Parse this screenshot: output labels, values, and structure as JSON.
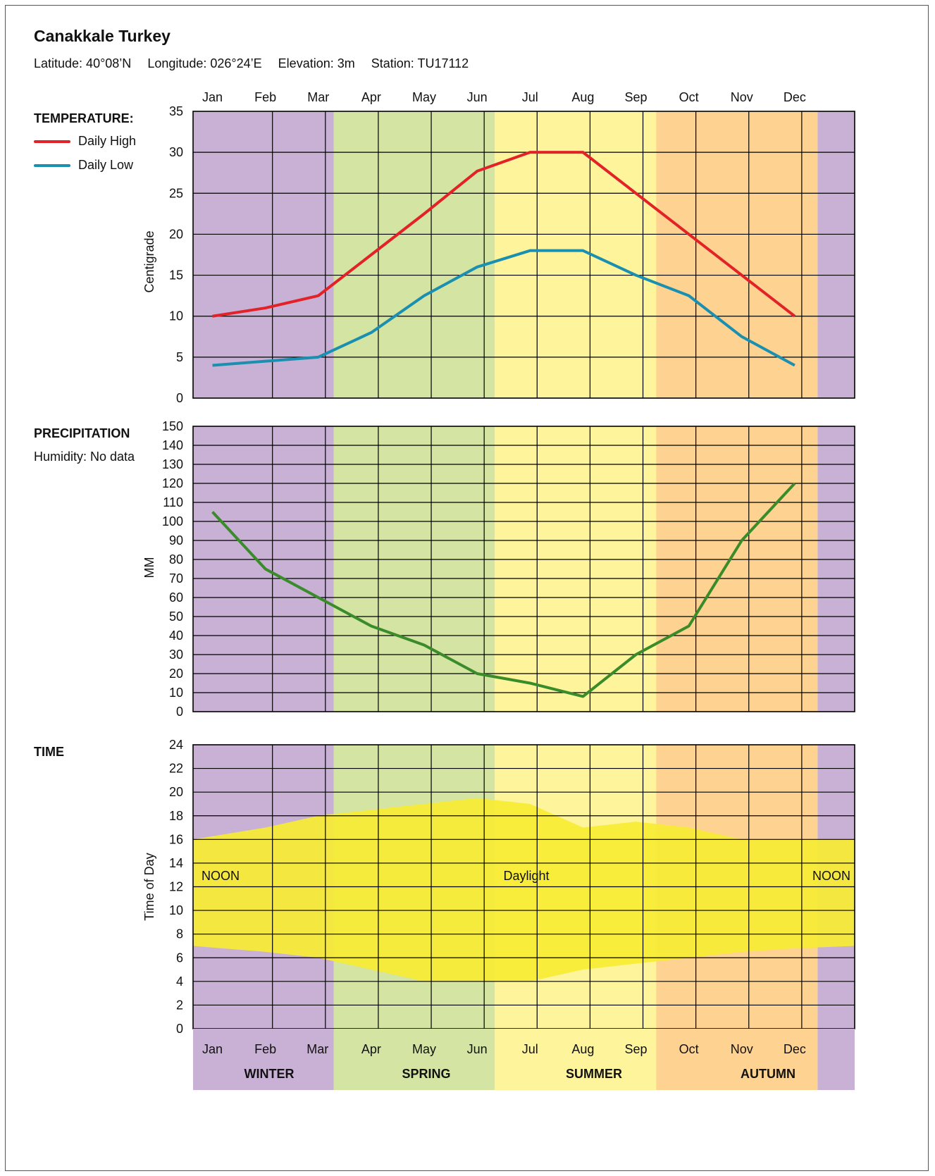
{
  "header": {
    "title": "Canakkale Turkey",
    "latitude": "Latitude: 40°08’N",
    "longitude": "Longitude: 026°24’E",
    "elevation": "Elevation: 3m",
    "station": "Station: TU17112"
  },
  "sections": {
    "temperature_label": "TEMPERATURE:",
    "precipitation_label": "PRECIPITATION",
    "humidity_note": "Humidity: No data",
    "time_label": "TIME"
  },
  "legend": {
    "daily_high": "Daily High",
    "daily_low": "Daily Low"
  },
  "colors": {
    "winter": "#c8b1d5",
    "spring": "#d3e4a3",
    "summer": "#fdf49c",
    "autumn": "#fed291",
    "daily_high": "#e32228",
    "daily_low": "#1a8fb0",
    "precipitation": "#3a8b2a",
    "daylight": "#f7ec33"
  },
  "chart_data": [
    {
      "type": "line",
      "categories": [
        "Jan",
        "Feb",
        "Mar",
        "Apr",
        "May",
        "Jun",
        "Jul",
        "Aug",
        "Sep",
        "Oct",
        "Nov",
        "Dec"
      ],
      "ylabel": "Centigrade",
      "ylim": [
        0,
        35
      ],
      "yticks": [
        0,
        5,
        10,
        15,
        20,
        25,
        30,
        35
      ],
      "series": [
        {
          "name": "Daily High",
          "values": [
            10,
            11,
            12.5,
            17.5,
            22.5,
            27.7,
            30,
            30,
            25,
            20,
            15,
            10
          ]
        },
        {
          "name": "Daily Low",
          "values": [
            4,
            4.5,
            5,
            8,
            12.5,
            16,
            18,
            18,
            15,
            12.5,
            7.5,
            4
          ]
        }
      ],
      "grid": true
    },
    {
      "type": "line",
      "categories": [
        "Jan",
        "Feb",
        "Mar",
        "Apr",
        "May",
        "Jun",
        "Jul",
        "Aug",
        "Sep",
        "Oct",
        "Nov",
        "Dec"
      ],
      "ylabel": "MM",
      "ylim": [
        0,
        150
      ],
      "yticks": [
        0,
        10,
        20,
        30,
        40,
        50,
        60,
        70,
        80,
        90,
        100,
        110,
        120,
        130,
        140,
        150
      ],
      "series": [
        {
          "values": [
            105,
            75,
            60,
            45,
            35,
            20,
            15,
            8,
            30,
            45,
            90,
            120
          ]
        }
      ],
      "grid": true
    },
    {
      "type": "area",
      "categories": [
        "Jan",
        "Feb",
        "Mar",
        "Apr",
        "May",
        "Jun",
        "Jul",
        "Aug",
        "Sep",
        "Oct",
        "Nov",
        "Dec"
      ],
      "ylabel": "Time of Day",
      "ylim": [
        0,
        24
      ],
      "yticks": [
        0,
        2,
        4,
        6,
        8,
        10,
        12,
        14,
        16,
        18,
        20,
        22,
        24
      ],
      "series": [
        {
          "name": "Daylight",
          "x": [
            0,
            1,
            2,
            3,
            4,
            5,
            6,
            7,
            8,
            9,
            10,
            11,
            12.5
          ],
          "sunrise": [
            7,
            6.5,
            6,
            5,
            4,
            4,
            4,
            5,
            5.5,
            6,
            6.5,
            6.8,
            7
          ],
          "sunset": [
            16,
            17,
            18,
            18.5,
            19,
            19.5,
            19,
            17,
            17.5,
            17,
            16,
            16,
            16
          ]
        }
      ],
      "annotations": [
        "NOON",
        "Daylight",
        "NOON"
      ],
      "grid": true
    }
  ],
  "bottom_axis": {
    "months": [
      "Jan",
      "Feb",
      "Mar",
      "Apr",
      "May",
      "Jun",
      "Jul",
      "Aug",
      "Sep",
      "Oct",
      "Nov",
      "Dec"
    ],
    "seasons": [
      "WINTER",
      "SPRING",
      "SUMMER",
      "AUTUMN"
    ]
  }
}
